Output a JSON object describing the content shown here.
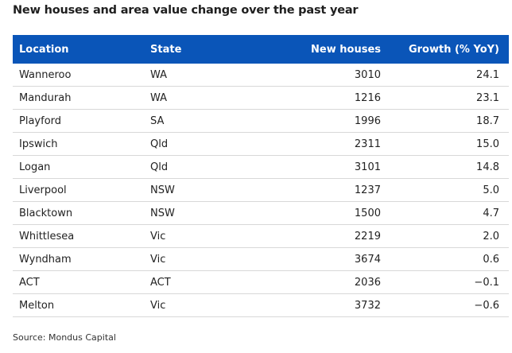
{
  "title": "New houses and area value change over the past year",
  "source": "Source: Mondus Capital",
  "colors": {
    "header_bg": "#0a55b8",
    "header_text": "#ffffff",
    "row_divider": "#d8d8d8"
  },
  "chart_data": {
    "type": "table",
    "columns": [
      "Location",
      "State",
      "New houses",
      "Growth (% YoY)"
    ],
    "rows": [
      [
        "Wanneroo",
        "WA",
        "3010",
        "24.1"
      ],
      [
        "Mandurah",
        "WA",
        "1216",
        "23.1"
      ],
      [
        "Playford",
        "SA",
        "1996",
        "18.7"
      ],
      [
        "Ipswich",
        "Qld",
        "2311",
        "15.0"
      ],
      [
        "Logan",
        "Qld",
        "3101",
        "14.8"
      ],
      [
        "Liverpool",
        "NSW",
        "1237",
        "5.0"
      ],
      [
        "Blacktown",
        "NSW",
        "1500",
        "4.7"
      ],
      [
        "Whittlesea",
        "Vic",
        "2219",
        "2.0"
      ],
      [
        "Wyndham",
        "Vic",
        "3674",
        "0.6"
      ],
      [
        "ACT",
        "ACT",
        "2036",
        "−0.1"
      ],
      [
        "Melton",
        "Vic",
        "3732",
        "−0.6"
      ]
    ]
  }
}
